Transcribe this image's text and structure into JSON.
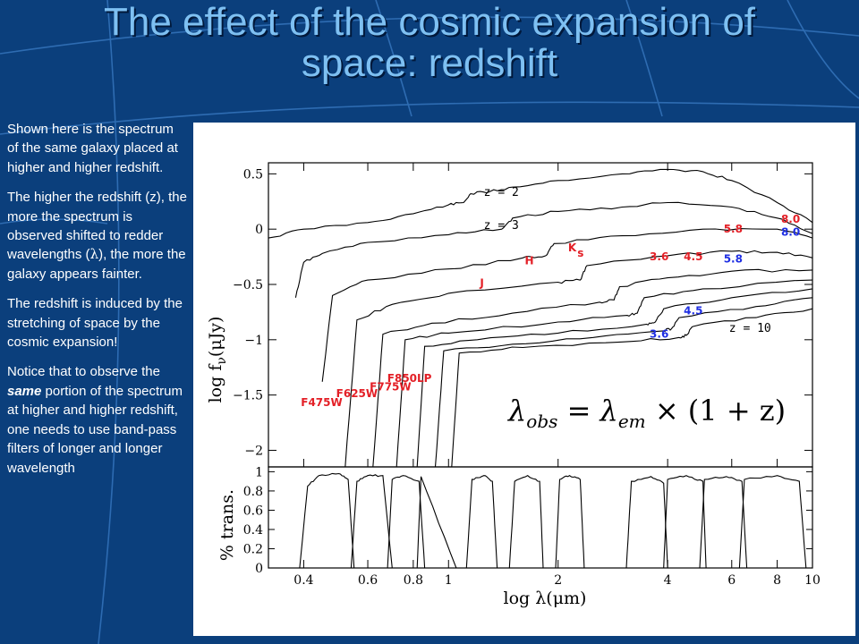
{
  "slide": {
    "title_line1": "The effect of the cosmic expansion of",
    "title_line2": "space: redshift"
  },
  "sidebar": {
    "p1": "Shown here is the spectrum of the same galaxy placed at higher and higher redshift.",
    "p2_before": "The higher the redshift (z), the more the spectrum is observed shifted to redder wavelengths (",
    "p2_symbol": "λ",
    "p2_after": "), the more the galaxy appears fainter.",
    "p3": "The redshift is induced by the stretching of space by the cosmic expansion!",
    "p4_before": "Notice that to observe the ",
    "p4_emph": "same",
    "p4_after": " portion of the spectrum at higher and higher redshift, one needs to use band-pass filters of longer and longer wavelength"
  },
  "colors": {
    "background": "#0b3f7c",
    "title": "#7ec0f2",
    "label_red": "#e31f26",
    "label_blue": "#1f2fe3"
  },
  "figure": {
    "formula": "λobs = λem × (1 + z)",
    "formula_lambda": "λ",
    "formula_obs": "obs",
    "formula_eq": " = ",
    "formula_em": "em",
    "formula_rest": " × (1 + z)"
  },
  "chart_data": [
    {
      "type": "line",
      "title": "",
      "ylabel": "log fν(μJy)",
      "ylabel_main": "log f",
      "ylabel_sub": "ν",
      "ylabel_unit": "(μJy)",
      "xlabel": "",
      "x_scale": "log",
      "xlim": [
        0.32,
        10
      ],
      "ylim": [
        -2.15,
        0.6
      ],
      "y_ticks": [
        0.5,
        0,
        -0.5,
        -1,
        -1.5,
        -2
      ],
      "y_tick_labels": [
        "0.5",
        "0",
        "−0.5",
        "−1",
        "−1.5",
        "−2"
      ],
      "z_labels": [
        {
          "text": "z = 2",
          "x": 1.25,
          "y": 0.3
        },
        {
          "text": "z = 3",
          "x": 1.25,
          "y": 0.0
        },
        {
          "text": "z = 10",
          "x": 5.9,
          "y": -0.93
        }
      ],
      "band_labels": [
        {
          "text": "J",
          "x": 1.22,
          "y": -0.52,
          "color": "red"
        },
        {
          "text": "H",
          "x": 1.62,
          "y": -0.32,
          "color": "red"
        },
        {
          "text": "K",
          "x": 2.13,
          "y": -0.2,
          "color": "red"
        },
        {
          "text": "s",
          "x": 2.26,
          "y": -0.25,
          "color": "red"
        },
        {
          "text": "3.6",
          "x": 3.57,
          "y": -0.28,
          "color": "red"
        },
        {
          "text": "4.5",
          "x": 4.43,
          "y": -0.28,
          "color": "red"
        },
        {
          "text": "5.8",
          "x": 5.7,
          "y": -0.03,
          "color": "red"
        },
        {
          "text": "8.0",
          "x": 8.2,
          "y": 0.06,
          "color": "red"
        },
        {
          "text": "8.0",
          "x": 8.2,
          "y": -0.06,
          "color": "blue"
        },
        {
          "text": "5.8",
          "x": 5.7,
          "y": -0.3,
          "color": "blue"
        },
        {
          "text": "4.5",
          "x": 4.43,
          "y": -0.77,
          "color": "blue"
        },
        {
          "text": "3.6",
          "x": 3.57,
          "y": -0.98,
          "color": "blue"
        }
      ],
      "filter_labels": [
        {
          "text": "F475W",
          "x": 0.44,
          "y": -1.6
        },
        {
          "text": "F625W",
          "x": 0.55,
          "y": -1.52
        },
        {
          "text": "F775W",
          "x": 0.68,
          "y": -1.46
        },
        {
          "text": "F850LP",
          "x": 0.76,
          "y": -1.38
        }
      ],
      "series": [
        {
          "z": 2,
          "points": [
            [
              0.32,
              -0.08
            ],
            [
              0.4,
              0.0
            ],
            [
              0.6,
              0.06
            ],
            [
              0.8,
              0.14
            ],
            [
              1.0,
              0.22
            ],
            [
              1.1,
              0.24
            ],
            [
              1.15,
              0.32
            ],
            [
              1.3,
              0.34
            ],
            [
              1.5,
              0.38
            ],
            [
              2.0,
              0.44
            ],
            [
              3.0,
              0.5
            ],
            [
              4.0,
              0.54
            ],
            [
              5.0,
              0.52
            ],
            [
              6.0,
              0.44
            ],
            [
              8.0,
              0.24
            ],
            [
              10,
              0.06
            ]
          ]
        },
        {
          "z": 3,
          "points": [
            [
              0.38,
              -0.62
            ],
            [
              0.4,
              -0.3
            ],
            [
              0.45,
              -0.22
            ],
            [
              0.6,
              -0.12
            ],
            [
              1.0,
              -0.05
            ],
            [
              1.4,
              0.0
            ],
            [
              1.5,
              0.1
            ],
            [
              2.0,
              0.16
            ],
            [
              3.0,
              0.2
            ],
            [
              4.0,
              0.24
            ],
            [
              6.0,
              0.2
            ],
            [
              8.0,
              0.1
            ],
            [
              10,
              -0.04
            ]
          ]
        },
        {
          "z": 4,
          "points": [
            [
              0.45,
              -1.38
            ],
            [
              0.48,
              -0.6
            ],
            [
              0.6,
              -0.46
            ],
            [
              1.0,
              -0.36
            ],
            [
              1.6,
              -0.26
            ],
            [
              1.85,
              -0.24
            ],
            [
              1.95,
              -0.13
            ],
            [
              3.0,
              -0.06
            ],
            [
              5.0,
              0.0
            ],
            [
              8.0,
              0.0
            ],
            [
              10,
              -0.08
            ]
          ]
        },
        {
          "z": 5,
          "points": [
            [
              0.52,
              -2.15
            ],
            [
              0.56,
              -0.82
            ],
            [
              0.7,
              -0.68
            ],
            [
              1.0,
              -0.58
            ],
            [
              2.0,
              -0.48
            ],
            [
              2.3,
              -0.46
            ],
            [
              2.4,
              -0.33
            ],
            [
              4.0,
              -0.24
            ],
            [
              6.0,
              -0.2
            ],
            [
              8.0,
              -0.21
            ],
            [
              10,
              -0.26
            ]
          ]
        },
        {
          "z": 6,
          "points": [
            [
              0.62,
              -2.15
            ],
            [
              0.66,
              -0.95
            ],
            [
              0.9,
              -0.85
            ],
            [
              1.5,
              -0.76
            ],
            [
              2.6,
              -0.66
            ],
            [
              2.85,
              -0.64
            ],
            [
              2.95,
              -0.52
            ],
            [
              4.0,
              -0.44
            ],
            [
              6.0,
              -0.38
            ],
            [
              10,
              -0.37
            ]
          ]
        },
        {
          "z": 7,
          "points": [
            [
              0.72,
              -2.15
            ],
            [
              0.76,
              -1.0
            ],
            [
              1.0,
              -0.94
            ],
            [
              2.0,
              -0.84
            ],
            [
              3.1,
              -0.78
            ],
            [
              3.3,
              -0.76
            ],
            [
              3.45,
              -0.62
            ],
            [
              5.0,
              -0.54
            ],
            [
              10,
              -0.46
            ]
          ]
        },
        {
          "z": 8,
          "points": [
            [
              0.82,
              -2.15
            ],
            [
              0.86,
              -1.06
            ],
            [
              1.2,
              -1.0
            ],
            [
              2.0,
              -0.94
            ],
            [
              3.5,
              -0.86
            ],
            [
              3.7,
              -0.84
            ],
            [
              3.9,
              -0.72
            ],
            [
              6.0,
              -0.62
            ],
            [
              10,
              -0.54
            ]
          ]
        },
        {
          "z": 9,
          "points": [
            [
              0.92,
              -2.15
            ],
            [
              0.97,
              -1.1
            ],
            [
              1.5,
              -1.04
            ],
            [
              2.5,
              -0.98
            ],
            [
              3.9,
              -0.92
            ],
            [
              4.1,
              -0.9
            ],
            [
              4.3,
              -0.8
            ],
            [
              7.0,
              -0.7
            ],
            [
              10,
              -0.62
            ]
          ]
        },
        {
          "z": 10,
          "points": [
            [
              1.02,
              -2.15
            ],
            [
              1.07,
              -1.12
            ],
            [
              1.6,
              -1.07
            ],
            [
              3.0,
              -1.02
            ],
            [
              4.3,
              -0.98
            ],
            [
              4.5,
              -0.96
            ],
            [
              4.7,
              -0.88
            ],
            [
              7.0,
              -0.8
            ],
            [
              10,
              -0.72
            ]
          ]
        }
      ]
    },
    {
      "type": "line",
      "title": "",
      "ylabel": "% trans.",
      "xlabel": "log λ(μm)",
      "xlabel_main": "log λ",
      "xlabel_unit": "(μm)",
      "x_scale": "log",
      "xlim": [
        0.32,
        10
      ],
      "ylim": [
        0,
        1.05
      ],
      "y_ticks": [
        1,
        0.8,
        0.6,
        0.4,
        0.2,
        0
      ],
      "y_tick_labels": [
        "1",
        "0.8",
        "0.6",
        "0.4",
        "0.2",
        "0"
      ],
      "x_ticks": [
        0.4,
        0.6,
        0.8,
        1,
        2,
        4,
        6,
        8,
        10
      ],
      "x_tick_labels": [
        "0.4",
        "0.6",
        "0.8",
        "1",
        "2",
        "4",
        "6",
        "8",
        "10"
      ],
      "filters": [
        {
          "name": "F475W",
          "points": [
            [
              0.39,
              0
            ],
            [
              0.41,
              0.85
            ],
            [
              0.44,
              0.96
            ],
            [
              0.5,
              0.98
            ],
            [
              0.53,
              0.92
            ],
            [
              0.55,
              0
            ]
          ]
        },
        {
          "name": "F625W",
          "points": [
            [
              0.54,
              0
            ],
            [
              0.56,
              0.9
            ],
            [
              0.6,
              0.96
            ],
            [
              0.66,
              0.96
            ],
            [
              0.7,
              0
            ]
          ]
        },
        {
          "name": "F775W",
          "points": [
            [
              0.68,
              0
            ],
            [
              0.7,
              0.92
            ],
            [
              0.75,
              0.96
            ],
            [
              0.83,
              0.9
            ],
            [
              0.86,
              0
            ]
          ]
        },
        {
          "name": "F850LP",
          "points": [
            [
              0.82,
              0
            ],
            [
              0.84,
              0.95
            ],
            [
              1.05,
              0
            ]
          ]
        },
        {
          "name": "J",
          "points": [
            [
              1.12,
              0
            ],
            [
              1.16,
              0.92
            ],
            [
              1.25,
              0.96
            ],
            [
              1.32,
              0.9
            ],
            [
              1.36,
              0
            ]
          ]
        },
        {
          "name": "H",
          "points": [
            [
              1.47,
              0
            ],
            [
              1.52,
              0.9
            ],
            [
              1.65,
              0.96
            ],
            [
              1.78,
              0.9
            ],
            [
              1.82,
              0
            ]
          ]
        },
        {
          "name": "Ks",
          "points": [
            [
              1.97,
              0
            ],
            [
              2.02,
              0.92
            ],
            [
              2.15,
              0.96
            ],
            [
              2.3,
              0.92
            ],
            [
              2.36,
              0
            ]
          ]
        },
        {
          "name": "3.6",
          "points": [
            [
              3.08,
              0
            ],
            [
              3.18,
              0.9
            ],
            [
              3.6,
              0.95
            ],
            [
              3.9,
              0.88
            ],
            [
              4.0,
              0
            ]
          ]
        },
        {
          "name": "4.5",
          "points": [
            [
              3.9,
              0
            ],
            [
              4.0,
              0.92
            ],
            [
              4.5,
              0.96
            ],
            [
              5.0,
              0.9
            ],
            [
              5.1,
              0
            ]
          ]
        },
        {
          "name": "5.8",
          "points": [
            [
              4.9,
              0
            ],
            [
              5.05,
              0.92
            ],
            [
              5.8,
              0.95
            ],
            [
              6.4,
              0.9
            ],
            [
              6.6,
              0
            ]
          ]
        },
        {
          "name": "8.0",
          "points": [
            [
              6.3,
              0
            ],
            [
              6.5,
              0.92
            ],
            [
              8.0,
              0.96
            ],
            [
              9.2,
              0.9
            ],
            [
              9.6,
              0
            ]
          ]
        }
      ]
    }
  ]
}
